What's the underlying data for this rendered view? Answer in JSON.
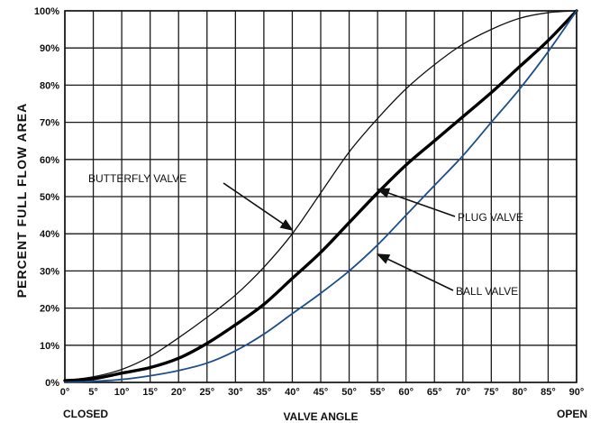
{
  "chart_data": {
    "type": "line",
    "title": "",
    "xlabel": "VALVE ANGLE",
    "ylabel": "PERCENT FULL FLOW AREA",
    "x_end_labels": {
      "start": "CLOSED",
      "end": "OPEN"
    },
    "xlim": [
      0,
      90
    ],
    "ylim": [
      0,
      100
    ],
    "x_ticks": [
      {
        "value": 0,
        "label": "0°"
      },
      {
        "value": 5,
        "label": "5°"
      },
      {
        "value": 10,
        "label": "10°"
      },
      {
        "value": 15,
        "label": "15°"
      },
      {
        "value": 20,
        "label": "20°"
      },
      {
        "value": 25,
        "label": "25°"
      },
      {
        "value": 30,
        "label": "30°"
      },
      {
        "value": 35,
        "label": "35°"
      },
      {
        "value": 40,
        "label": "40°"
      },
      {
        "value": 45,
        "label": "45°"
      },
      {
        "value": 50,
        "label": "50°"
      },
      {
        "value": 55,
        "label": "55°"
      },
      {
        "value": 60,
        "label": "60°"
      },
      {
        "value": 65,
        "label": "65°"
      },
      {
        "value": 70,
        "label": "70°"
      },
      {
        "value": 75,
        "label": "75°"
      },
      {
        "value": 80,
        "label": "80°"
      },
      {
        "value": 85,
        "label": "85°"
      },
      {
        "value": 90,
        "label": "90°"
      }
    ],
    "y_ticks": [
      {
        "value": 0,
        "label": "0%"
      },
      {
        "value": 10,
        "label": "10%"
      },
      {
        "value": 20,
        "label": "20%"
      },
      {
        "value": 30,
        "label": "30%"
      },
      {
        "value": 40,
        "label": "40%"
      },
      {
        "value": 50,
        "label": "50%"
      },
      {
        "value": 60,
        "label": "60%"
      },
      {
        "value": 70,
        "label": "70%"
      },
      {
        "value": 80,
        "label": "80%"
      },
      {
        "value": 90,
        "label": "90%"
      },
      {
        "value": 100,
        "label": "100%"
      }
    ],
    "grid": true,
    "series": [
      {
        "name": "BUTTERFLY VALVE",
        "color": "#111111",
        "style": "thin",
        "x": [
          0,
          5,
          10,
          15,
          20,
          25,
          30,
          35,
          40,
          45,
          50,
          55,
          60,
          65,
          70,
          75,
          80,
          85,
          90
        ],
        "y": [
          0.5,
          1.5,
          3.5,
          7,
          12,
          17.5,
          23.5,
          31,
          40,
          51,
          62,
          71,
          79,
          85.5,
          91,
          95,
          98,
          99.5,
          100
        ]
      },
      {
        "name": "PLUG VALVE",
        "color": "#000000",
        "style": "thick",
        "x": [
          0,
          5,
          10,
          15,
          20,
          25,
          30,
          35,
          40,
          45,
          50,
          55,
          60,
          65,
          70,
          75,
          80,
          85,
          90
        ],
        "y": [
          0.5,
          1,
          2.5,
          4,
          6.5,
          10.5,
          15.5,
          21,
          28,
          35,
          43,
          51,
          58.5,
          65,
          71.5,
          78,
          85,
          92,
          100
        ]
      },
      {
        "name": "BALL VALVE",
        "color": "#1f4e8c",
        "style": "medium",
        "x": [
          0,
          5,
          10,
          15,
          20,
          25,
          30,
          35,
          40,
          45,
          50,
          55,
          60,
          65,
          70,
          75,
          80,
          85,
          90
        ],
        "y": [
          0,
          0.3,
          0.8,
          1.8,
          3.2,
          5.2,
          8.5,
          13,
          18.5,
          24,
          30,
          37,
          45,
          53,
          61,
          70,
          79,
          89,
          100
        ]
      }
    ],
    "annotations": [
      {
        "text": "BUTTERFLY VALVE",
        "series": "BUTTERFLY VALVE",
        "point": [
          40,
          41
        ]
      },
      {
        "text": "PLUG VALVE",
        "series": "PLUG VALVE",
        "point": [
          55,
          52
        ]
      },
      {
        "text": "BALL VALVE",
        "series": "BALL VALVE",
        "point": [
          55,
          34.5
        ]
      }
    ]
  }
}
